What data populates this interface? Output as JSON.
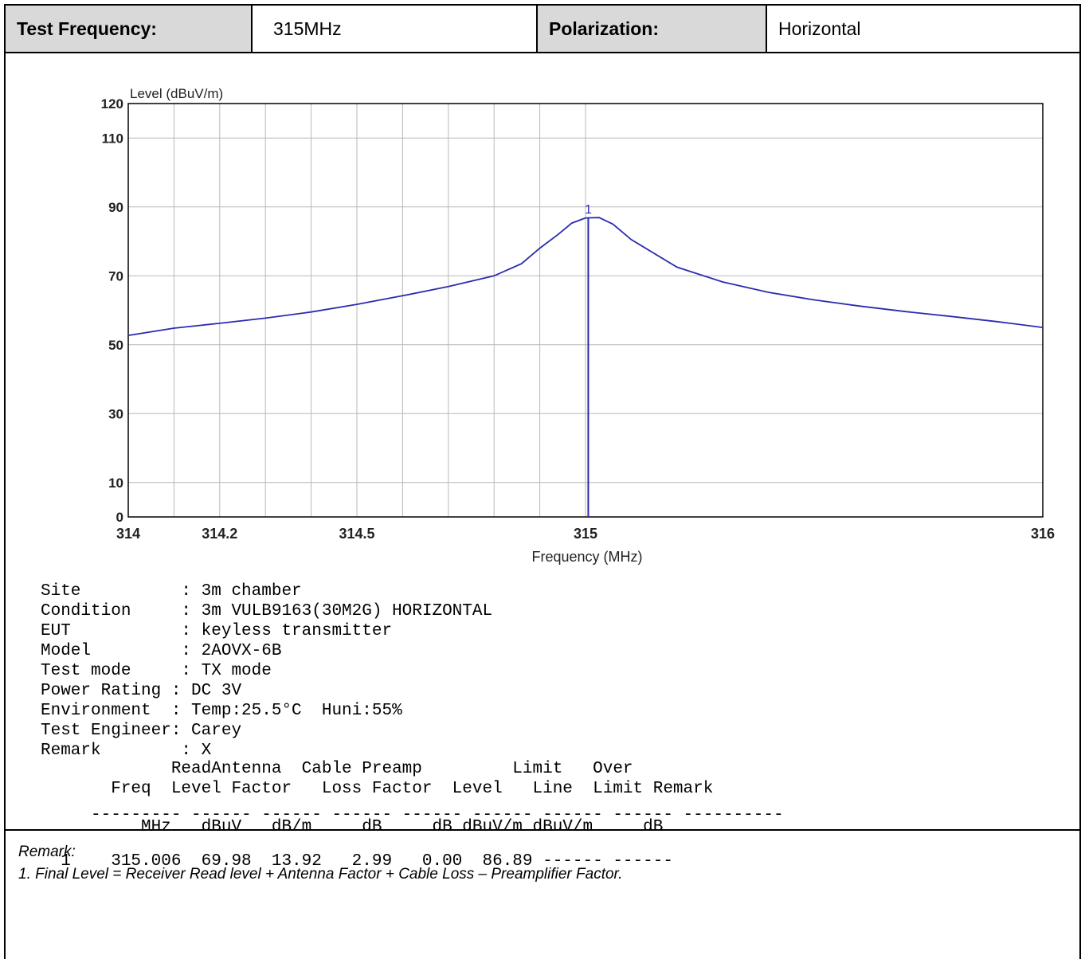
{
  "header": {
    "test_frequency_label": "Test Frequency:",
    "test_frequency_value": "315MHz",
    "polarization_label": "Polarization:",
    "polarization_value": "Horizontal"
  },
  "chart_data": {
    "type": "line",
    "ylabel": "Level (dBuV/m)",
    "xlabel": "Frequency (MHz)",
    "ylim": [
      0,
      120
    ],
    "xlim": [
      314,
      316
    ],
    "y_ticks": [
      0,
      10,
      30,
      50,
      70,
      90,
      110,
      120
    ],
    "x_ticks": [
      {
        "v": 314,
        "label": "314"
      },
      {
        "v": 314.1,
        "label": ""
      },
      {
        "v": 314.2,
        "label": "314.2"
      },
      {
        "v": 314.3,
        "label": ""
      },
      {
        "v": 314.4,
        "label": ""
      },
      {
        "v": 314.5,
        "label": "314.5"
      },
      {
        "v": 314.6,
        "label": ""
      },
      {
        "v": 314.7,
        "label": ""
      },
      {
        "v": 314.8,
        "label": ""
      },
      {
        "v": 314.9,
        "label": ""
      },
      {
        "v": 315,
        "label": "315"
      },
      {
        "v": 316,
        "label": "316"
      }
    ],
    "grid": true,
    "series": [
      {
        "color": "#2b2bb0",
        "points": [
          [
            314.0,
            52.7
          ],
          [
            314.1,
            54.8
          ],
          [
            314.2,
            56.2
          ],
          [
            314.3,
            57.7
          ],
          [
            314.4,
            59.5
          ],
          [
            314.5,
            61.7
          ],
          [
            314.6,
            64.2
          ],
          [
            314.7,
            66.9
          ],
          [
            314.8,
            70.0
          ],
          [
            314.86,
            73.5
          ],
          [
            314.9,
            78.0
          ],
          [
            314.94,
            82.0
          ],
          [
            314.97,
            85.3
          ],
          [
            315.0,
            86.8
          ],
          [
            315.03,
            86.9
          ],
          [
            315.06,
            85.0
          ],
          [
            315.1,
            80.5
          ],
          [
            315.2,
            72.5
          ],
          [
            315.3,
            68.2
          ],
          [
            315.4,
            65.2
          ],
          [
            315.5,
            63.0
          ],
          [
            315.6,
            61.2
          ],
          [
            315.7,
            59.6
          ],
          [
            315.8,
            58.2
          ],
          [
            315.9,
            56.7
          ],
          [
            316.0,
            55.0
          ]
        ]
      }
    ],
    "marker": {
      "x": 315.006,
      "y": 86.89,
      "label": "1"
    }
  },
  "info_lines": [
    "Site          : 3m chamber",
    "Condition     : 3m VULB9163(30M2G) HORIZONTAL",
    "EUT           : keyless transmitter",
    "Model         : 2AOVX-6B",
    "Test mode     : TX mode",
    "Power Rating : DC 3V",
    "Environment  : Temp:25.5°C  Huni:55%",
    "Test Engineer: Carey",
    "Remark        : X"
  ],
  "table_header_lines": [
    "             ReadAntenna  Cable Preamp         Limit   Over",
    "       Freq  Level Factor   Loss Factor  Level   Line  Limit Remark"
  ],
  "table_dashes": "     --------- ------ ------ ------ ------ ------ ------ ------ ----------",
  "table_units": "          MHz   dBuV   dB/m     dB     dB dBuV/m dBuV/m     dB",
  "table_row": "  1    315.006  69.98  13.92   2.99   0.00  86.89 ------ ------",
  "remark": {
    "title": "Remark:",
    "note": "1.  Final Level = Receiver Read level + Antenna Factor + Cable Loss – Preamplifier Factor."
  }
}
